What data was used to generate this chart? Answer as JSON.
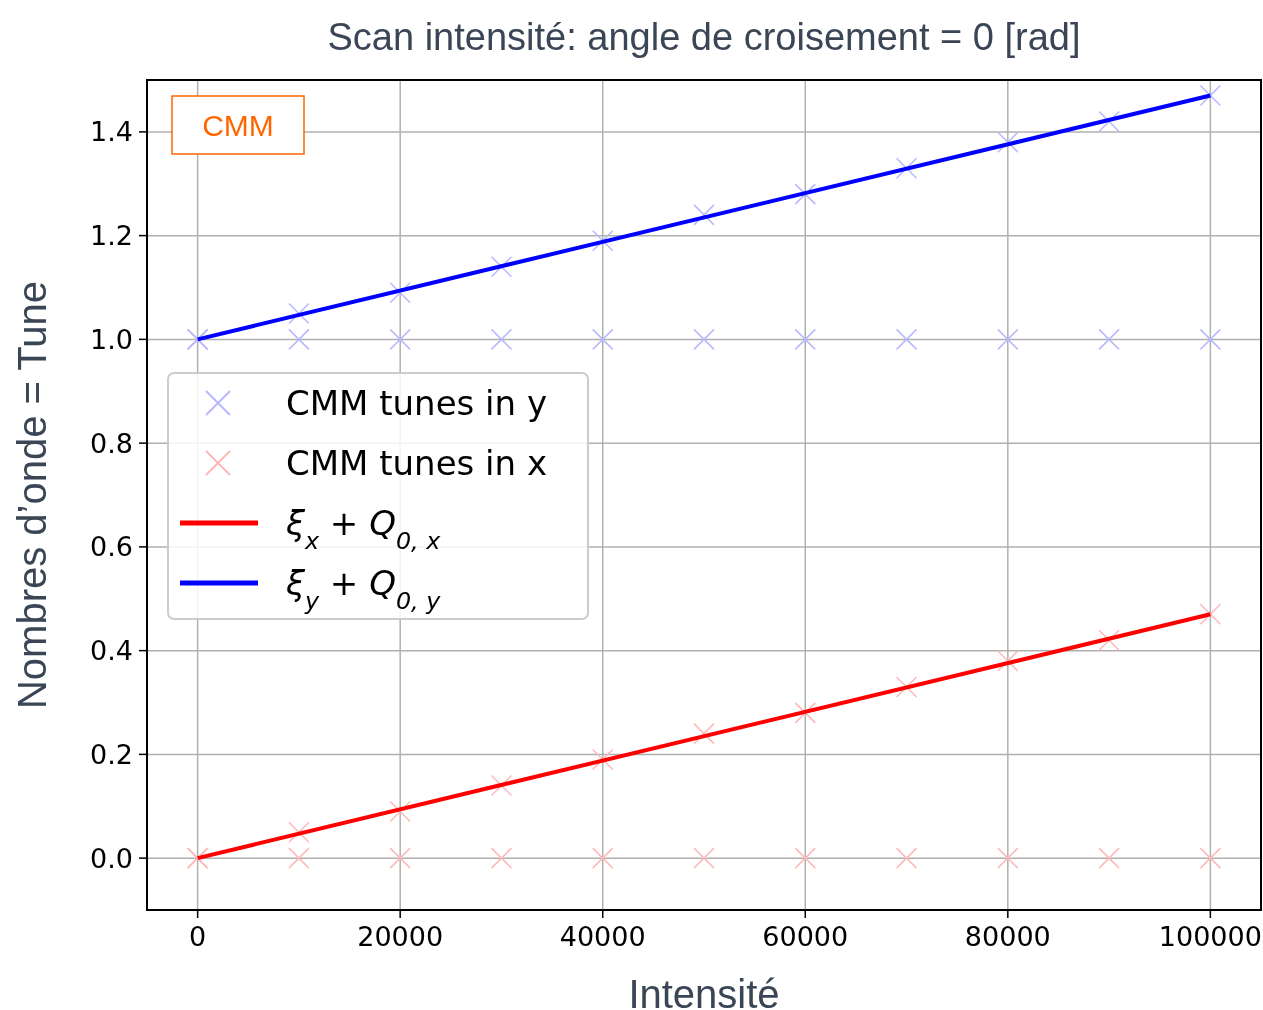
{
  "chart_data": {
    "type": "scatter",
    "title": "Scan intensité: angle de croisement = 0 [rad]",
    "xlabel": "Intensité",
    "ylabel": "Nombres d’onde = Tune",
    "annotations": [
      "CMM"
    ],
    "xlim": [
      -5000,
      105000
    ],
    "ylim": [
      -0.1,
      1.5
    ],
    "xticks": [
      0,
      20000,
      40000,
      60000,
      80000,
      100000
    ],
    "yticks": [
      {
        "value": 0,
        "label": "0.0"
      },
      0.2,
      0.4,
      0.6,
      0.8,
      {
        "value": 1,
        "label": "1.0"
      },
      1.2,
      1.4
    ],
    "grid": true,
    "legend": "left",
    "series": [
      {
        "name": "CMM tunes in y",
        "marker": "cross",
        "color": "#b8b8ff",
        "x": [
          0,
          10000,
          20000,
          30000,
          40000,
          50000,
          60000,
          70000,
          80000,
          90000,
          100000,
          0,
          10000,
          20000,
          30000,
          40000,
          50000,
          60000,
          70000,
          80000,
          90000,
          100000
        ],
        "values": [
          1,
          1,
          1,
          1,
          1,
          1,
          1,
          1,
          1,
          1,
          1,
          1,
          1.05,
          1.09,
          1.14,
          1.19,
          1.24,
          1.28,
          1.33,
          1.38,
          1.42,
          1.47
        ]
      },
      {
        "name": "CMM tunes in x",
        "marker": "cross",
        "color": "#ffb8b8",
        "x": [
          0,
          10000,
          20000,
          30000,
          40000,
          50000,
          60000,
          70000,
          80000,
          90000,
          100000,
          0,
          10000,
          20000,
          30000,
          40000,
          50000,
          60000,
          70000,
          80000,
          90000,
          100000
        ],
        "values": [
          0,
          0,
          0,
          0,
          0,
          0,
          0,
          0,
          0,
          0,
          0,
          0,
          0.05,
          0.09,
          0.14,
          0.19,
          0.24,
          0.28,
          0.33,
          0.38,
          0.42,
          0.47
        ]
      },
      {
        "name": "ξ$_{x}$ + Q$_{0, x}$",
        "type": "line",
        "marker": "none",
        "color": "#ff0000",
        "x": [
          0,
          100000
        ],
        "values": [
          0,
          0.47
        ]
      },
      {
        "name": "ξ$_{y}$ + Q$_{0, y}$",
        "type": "line",
        "marker": "none",
        "color": "#0000ff",
        "x": [
          0,
          100000
        ],
        "values": [
          1,
          1.47
        ]
      }
    ]
  }
}
